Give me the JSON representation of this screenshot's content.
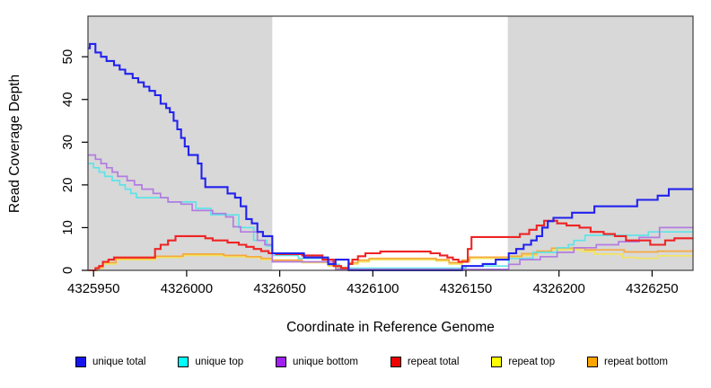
{
  "figure": {
    "x_axis_title": "Coordinate in Reference Genome",
    "y_axis_title": "Read Coverage Depth"
  },
  "legend": {
    "items": [
      {
        "label": "unique total",
        "color": "#1414EE"
      },
      {
        "label": "unique top",
        "color": "#00FFFF"
      },
      {
        "label": "unique bottom",
        "color": "#A020F0"
      },
      {
        "label": "repeat total",
        "color": "#EE0000"
      },
      {
        "label": "repeat top",
        "color": "#FFFF00"
      },
      {
        "label": "repeat bottom",
        "color": "#FFA500"
      }
    ]
  },
  "chart_data": {
    "type": "line",
    "line_style": "step-after",
    "xlabel": "Coordinate in Reference Genome",
    "ylabel": "Read Coverage Depth",
    "xlim": [
      4325947,
      4326272
    ],
    "ylim": [
      0,
      59.5
    ],
    "grid": false,
    "legend_position": "bottom",
    "box_color": "#3f3f3f",
    "region_color": "#d8d8d8",
    "shaded_regions": [
      [
        4325947,
        4326046
      ],
      [
        4326172.5,
        4326272
      ]
    ],
    "x_ticks": {
      "values": [
        4325950,
        4326000,
        4326050,
        4326100,
        4326150,
        4326200,
        4326250
      ],
      "labels": [
        "4325950",
        "4326000",
        "4326050",
        "4326100",
        "4326150",
        "4326200",
        "4326250"
      ]
    },
    "y_ticks": {
      "values": [
        0,
        10,
        20,
        30,
        40,
        50
      ],
      "labels": [
        "0",
        "10",
        "20",
        "30",
        "40",
        "50"
      ]
    },
    "series": [
      {
        "name": "repeat top",
        "color": "#f2e45c",
        "width": 1.7,
        "points": [
          [
            4325947,
            0
          ],
          [
            4325952,
            0.5
          ],
          [
            4325955,
            1.5
          ],
          [
            4325962,
            2.5
          ],
          [
            4325983,
            3
          ],
          [
            4325998,
            3.5
          ],
          [
            4326020,
            3.2
          ],
          [
            4326032,
            3
          ],
          [
            4326040,
            2.5
          ],
          [
            4326046,
            2.1
          ],
          [
            4326062,
            1.8
          ],
          [
            4326076,
            1
          ],
          [
            4326080,
            0.4
          ],
          [
            4326087,
            1.5
          ],
          [
            4326092,
            2
          ],
          [
            4326098,
            2.5
          ],
          [
            4326134,
            2.2
          ],
          [
            4326141,
            1.5
          ],
          [
            4326148,
            2
          ],
          [
            4326152,
            2.8
          ],
          [
            4326173,
            3
          ],
          [
            4326180,
            3.5
          ],
          [
            4326188,
            4.2
          ],
          [
            4326196,
            4.8
          ],
          [
            4326212,
            4.4
          ],
          [
            4326219,
            3.8
          ],
          [
            4326234,
            3
          ],
          [
            4326242,
            2.8
          ],
          [
            4326253,
            3.4
          ]
        ]
      },
      {
        "name": "repeat bottom",
        "color": "#f5a93f",
        "width": 1.7,
        "points": [
          [
            4325947,
            0
          ],
          [
            4325952,
            0.7
          ],
          [
            4325955,
            1.8
          ],
          [
            4325962,
            2.8
          ],
          [
            4325983,
            3.3
          ],
          [
            4325998,
            3.8
          ],
          [
            4326020,
            3.5
          ],
          [
            4326032,
            3.2
          ],
          [
            4326040,
            2.8
          ],
          [
            4326046,
            2.4
          ],
          [
            4326062,
            2
          ],
          [
            4326076,
            1.2
          ],
          [
            4326080,
            0.7
          ],
          [
            4326087,
            1.8
          ],
          [
            4326092,
            2.4
          ],
          [
            4326098,
            2.8
          ],
          [
            4326134,
            2.5
          ],
          [
            4326141,
            1.8
          ],
          [
            4326148,
            2.4
          ],
          [
            4326152,
            3.1
          ],
          [
            4326173,
            3.3
          ],
          [
            4326180,
            3.9
          ],
          [
            4326188,
            4.5
          ],
          [
            4326196,
            5.2
          ],
          [
            4326214,
            4.8
          ],
          [
            4326235,
            4.3
          ],
          [
            4326253,
            4.5
          ]
        ]
      },
      {
        "name": "unique top",
        "color": "#5fe3e8",
        "width": 1.7,
        "points": [
          [
            4325947,
            25
          ],
          [
            4325950,
            24
          ],
          [
            4325953,
            23
          ],
          [
            4325956,
            22
          ],
          [
            4325960,
            21
          ],
          [
            4325964,
            20
          ],
          [
            4325967,
            19
          ],
          [
            4325970,
            18
          ],
          [
            4325973,
            17
          ],
          [
            4325990,
            16
          ],
          [
            4326005,
            14.5
          ],
          [
            4326013,
            13
          ],
          [
            4326028,
            10
          ],
          [
            4326036,
            7
          ],
          [
            4326043,
            5.7
          ],
          [
            4326046,
            3.5
          ],
          [
            4326060,
            2.8
          ],
          [
            4326076,
            1.4
          ],
          [
            4326082,
            0.5
          ],
          [
            4326150,
            1
          ],
          [
            4326173,
            2.8
          ],
          [
            4326186,
            4.2
          ],
          [
            4326199,
            5.3
          ],
          [
            4326205,
            6
          ],
          [
            4326208,
            7
          ],
          [
            4326214,
            8.2
          ],
          [
            4326248,
            9
          ]
        ]
      },
      {
        "name": "unique bottom",
        "color": "#b27ce0",
        "width": 1.7,
        "points": [
          [
            4325947,
            27
          ],
          [
            4325951,
            26
          ],
          [
            4325954,
            25
          ],
          [
            4325957,
            24
          ],
          [
            4325960,
            23
          ],
          [
            4325963,
            22
          ],
          [
            4325968,
            21
          ],
          [
            4325972,
            20
          ],
          [
            4325976,
            19
          ],
          [
            4325982,
            18
          ],
          [
            4325986,
            17
          ],
          [
            4325990,
            16
          ],
          [
            4325997,
            15.5
          ],
          [
            4326003,
            14
          ],
          [
            4326014,
            13.3
          ],
          [
            4326021,
            12.5
          ],
          [
            4326025,
            10.2
          ],
          [
            4326029,
            9
          ],
          [
            4326038,
            7
          ],
          [
            4326042,
            6
          ],
          [
            4326046,
            2
          ],
          [
            4326080,
            0.25
          ],
          [
            4326173,
            1.4
          ],
          [
            4326179,
            2.5
          ],
          [
            4326190,
            3.2
          ],
          [
            4326199,
            4.2
          ],
          [
            4326208,
            5.3
          ],
          [
            4326220,
            6
          ],
          [
            4326232,
            6.7
          ],
          [
            4326243,
            7.7
          ],
          [
            4326254,
            10
          ]
        ]
      },
      {
        "name": "repeat total",
        "color": "#ee2424",
        "width": 2.1,
        "points": [
          [
            4325947,
            0
          ],
          [
            4325951,
            0.5
          ],
          [
            4325953,
            1
          ],
          [
            4325955,
            2
          ],
          [
            4325958,
            2.5
          ],
          [
            4325961,
            3
          ],
          [
            4325983,
            5
          ],
          [
            4325986,
            6
          ],
          [
            4325990,
            7
          ],
          [
            4325994,
            8
          ],
          [
            4326010,
            7.5
          ],
          [
            4326014,
            7
          ],
          [
            4326022,
            6.5
          ],
          [
            4326028,
            6
          ],
          [
            4326032,
            5.5
          ],
          [
            4326036,
            5
          ],
          [
            4326040,
            4.5
          ],
          [
            4326044,
            4
          ],
          [
            4326048,
            3.8
          ],
          [
            4326062,
            3.5
          ],
          [
            4326073,
            2.5
          ],
          [
            4326079,
            1
          ],
          [
            4326083,
            0.5
          ],
          [
            4326087,
            1.5
          ],
          [
            4326089,
            2.5
          ],
          [
            4326092,
            3.3
          ],
          [
            4326096,
            4
          ],
          [
            4326104,
            4.4
          ],
          [
            4326131,
            4
          ],
          [
            4326136,
            3.5
          ],
          [
            4326140,
            3
          ],
          [
            4326143,
            2.5
          ],
          [
            4326146,
            2
          ],
          [
            4326151,
            5
          ],
          [
            4326153,
            7.8
          ],
          [
            4326179,
            8.5
          ],
          [
            4326184,
            9.5
          ],
          [
            4326188,
            10.5
          ],
          [
            4326192,
            11.6
          ],
          [
            4326199,
            11
          ],
          [
            4326204,
            10.5
          ],
          [
            4326211,
            10
          ],
          [
            4326217,
            9
          ],
          [
            4326224,
            8.5
          ],
          [
            4326230,
            8
          ],
          [
            4326236,
            7
          ],
          [
            4326249,
            6
          ],
          [
            4326257,
            7
          ],
          [
            4326262,
            7.5
          ]
        ]
      },
      {
        "name": "unique total",
        "color": "#2222ee",
        "width": 2.1,
        "points": [
          [
            4325947,
            52
          ],
          [
            4325948,
            53
          ],
          [
            4325951,
            51
          ],
          [
            4325954,
            50
          ],
          [
            4325957,
            49
          ],
          [
            4325961,
            48
          ],
          [
            4325964,
            47
          ],
          [
            4325967,
            46
          ],
          [
            4325971,
            45
          ],
          [
            4325974,
            44
          ],
          [
            4325977,
            43
          ],
          [
            4325980,
            42
          ],
          [
            4325983,
            41
          ],
          [
            4325986,
            39
          ],
          [
            4325989,
            38
          ],
          [
            4325991,
            37
          ],
          [
            4325993,
            35
          ],
          [
            4325995,
            33
          ],
          [
            4325997,
            31
          ],
          [
            4325999,
            29
          ],
          [
            4326001,
            27
          ],
          [
            4326006,
            25
          ],
          [
            4326008,
            21.5
          ],
          [
            4326010,
            19.5
          ],
          [
            4326022,
            18
          ],
          [
            4326026,
            17
          ],
          [
            4326029,
            15
          ],
          [
            4326032,
            12
          ],
          [
            4326035,
            11
          ],
          [
            4326038,
            9
          ],
          [
            4326041,
            8
          ],
          [
            4326046,
            4
          ],
          [
            4326063,
            3
          ],
          [
            4326076,
            1.5
          ],
          [
            4326080,
            2.5
          ],
          [
            4326087,
            0
          ],
          [
            4326148,
            1
          ],
          [
            4326159,
            1.5
          ],
          [
            4326166,
            2.5
          ],
          [
            4326173,
            4
          ],
          [
            4326177,
            5
          ],
          [
            4326181,
            6
          ],
          [
            4326185,
            7
          ],
          [
            4326188,
            8
          ],
          [
            4326191,
            10
          ],
          [
            4326194,
            11.5
          ],
          [
            4326197,
            12.3
          ],
          [
            4326207,
            13.5
          ],
          [
            4326219,
            15
          ],
          [
            4326242,
            16.5
          ],
          [
            4326253,
            17.5
          ],
          [
            4326259,
            19
          ]
        ]
      }
    ]
  }
}
